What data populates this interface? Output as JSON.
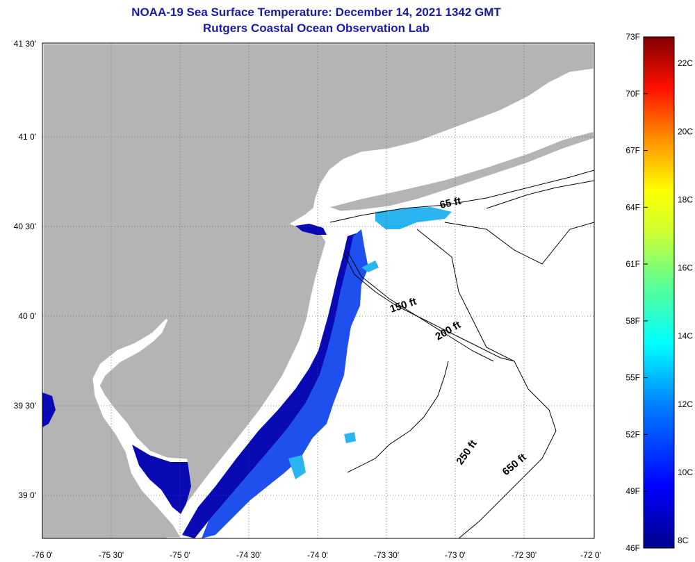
{
  "title": {
    "line1": "NOAA-19 Sea Surface Temperature:  December 14, 2021 1342 GMT",
    "line2": "Rutgers Coastal Ocean Observation Lab"
  },
  "map": {
    "lat_labels": [
      "41 30'",
      "41 0'",
      "40 30'",
      "40 0'",
      "39 30'",
      "39 0'"
    ],
    "lon_labels": [
      "-76 0'",
      "-75 30'",
      "-75 0'",
      "-74 30'",
      "-74 0'",
      "-73 30'",
      "-73 0'",
      "-72 30'",
      "-72 0'"
    ],
    "depth_labels": [
      "65 ft",
      "150 ft",
      "200 ft",
      "250 ft",
      "650 ft"
    ],
    "colors": {
      "land": "#b4b4b4",
      "ocean_no_data": "#ffffff",
      "water_dark": "#0a0ab4",
      "water_mid": "#1e50f0",
      "water_light": "#2ab4f0"
    }
  },
  "colorbar": {
    "f_labels": [
      "73F",
      "70F",
      "67F",
      "64F",
      "61F",
      "58F",
      "55F",
      "52F",
      "49F",
      "46F"
    ],
    "c_labels": [
      "22C",
      "20C",
      "18C",
      "16C",
      "14C",
      "12C",
      "10C",
      "8C"
    ],
    "range_f": [
      46,
      73
    ],
    "range_c": [
      8,
      22
    ]
  }
}
